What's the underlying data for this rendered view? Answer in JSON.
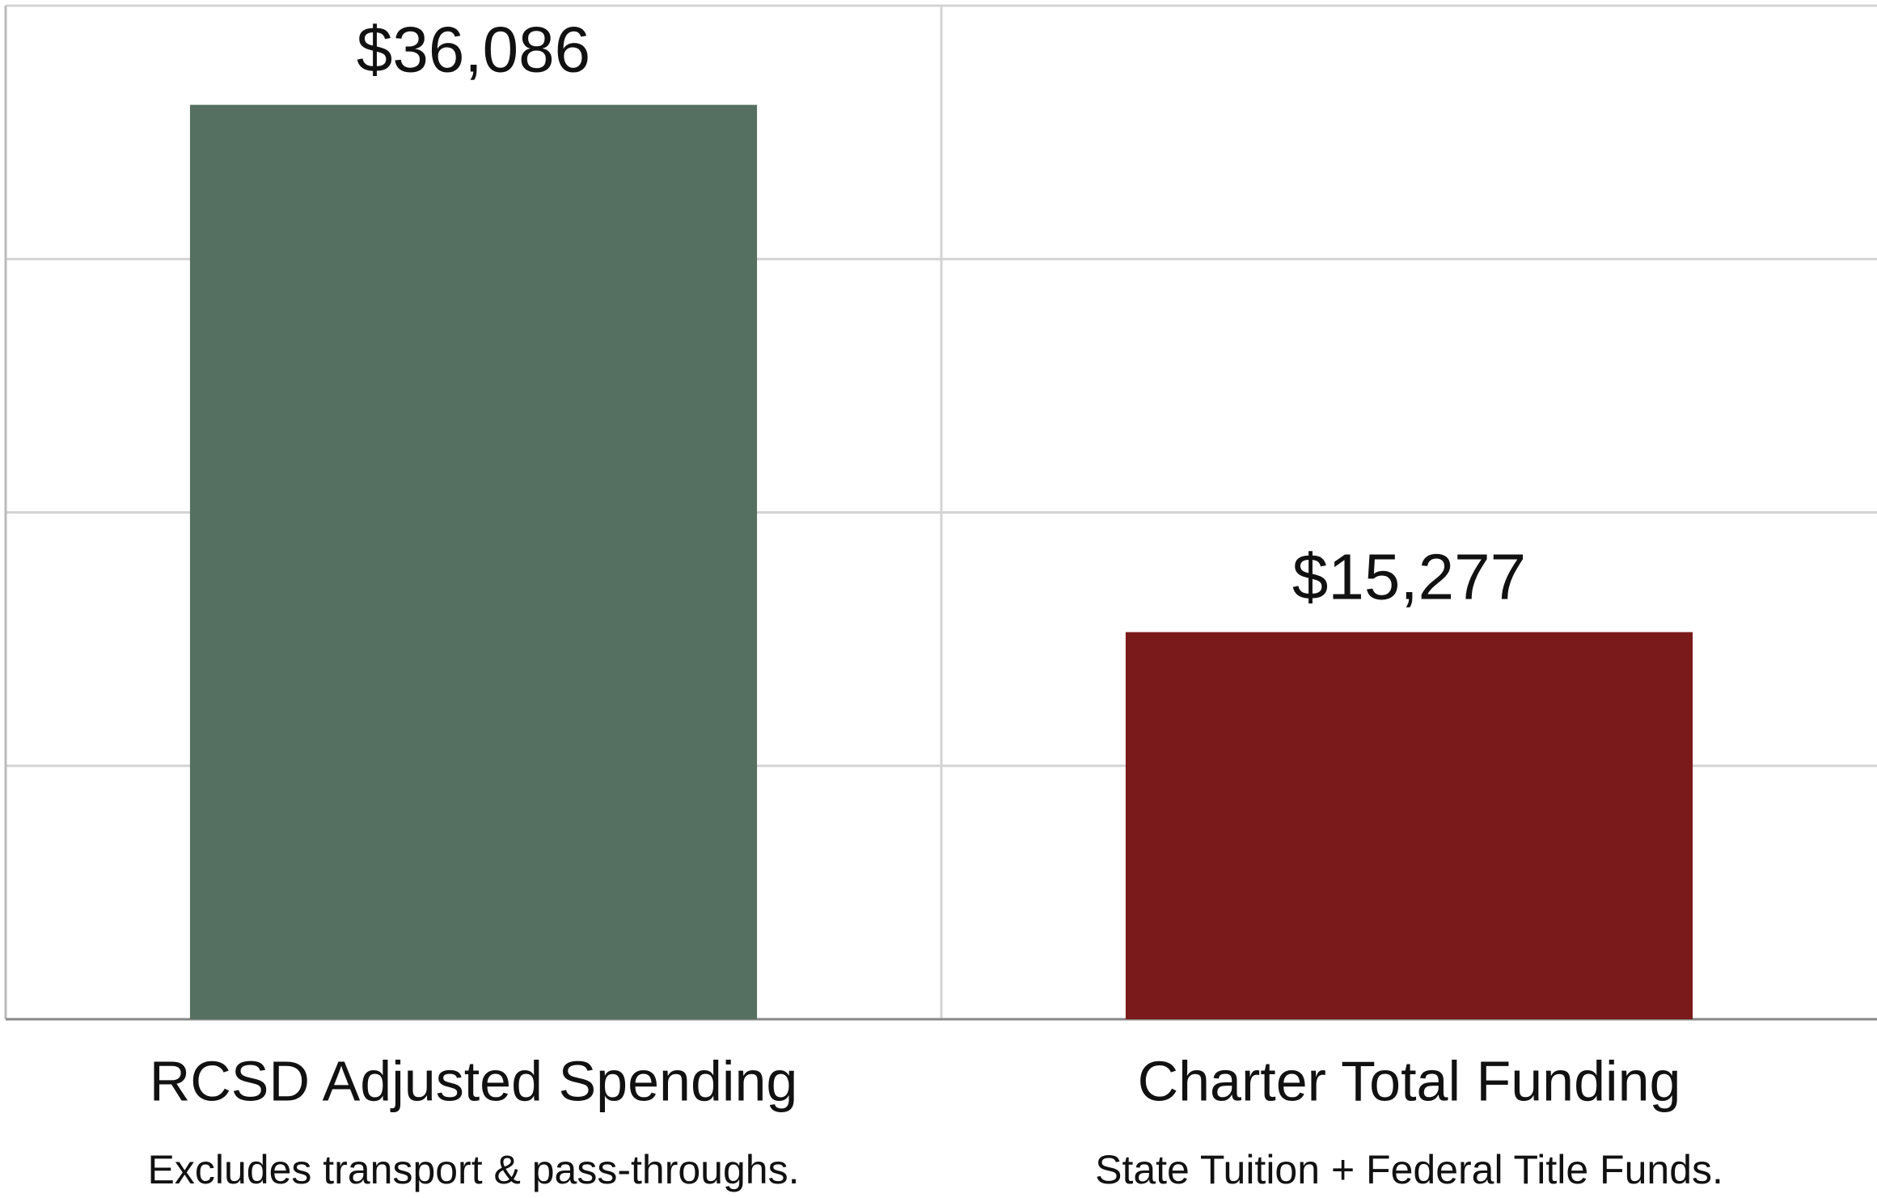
{
  "chart_data": {
    "type": "bar",
    "categories": [
      "RCSD Adjusted Spending",
      "Charter Total Funding"
    ],
    "category_notes": [
      "Excludes transport & pass-throughs.",
      "State Tuition + Federal Title Funds."
    ],
    "values": [
      36086,
      15277
    ],
    "value_labels": [
      "$36,086",
      "$15,277"
    ],
    "colors": [
      "#557060",
      "#7a1a1a"
    ],
    "ylim": [
      0,
      40000
    ],
    "yticks": [
      0,
      10000,
      20000,
      30000,
      40000
    ],
    "grid": true
  }
}
